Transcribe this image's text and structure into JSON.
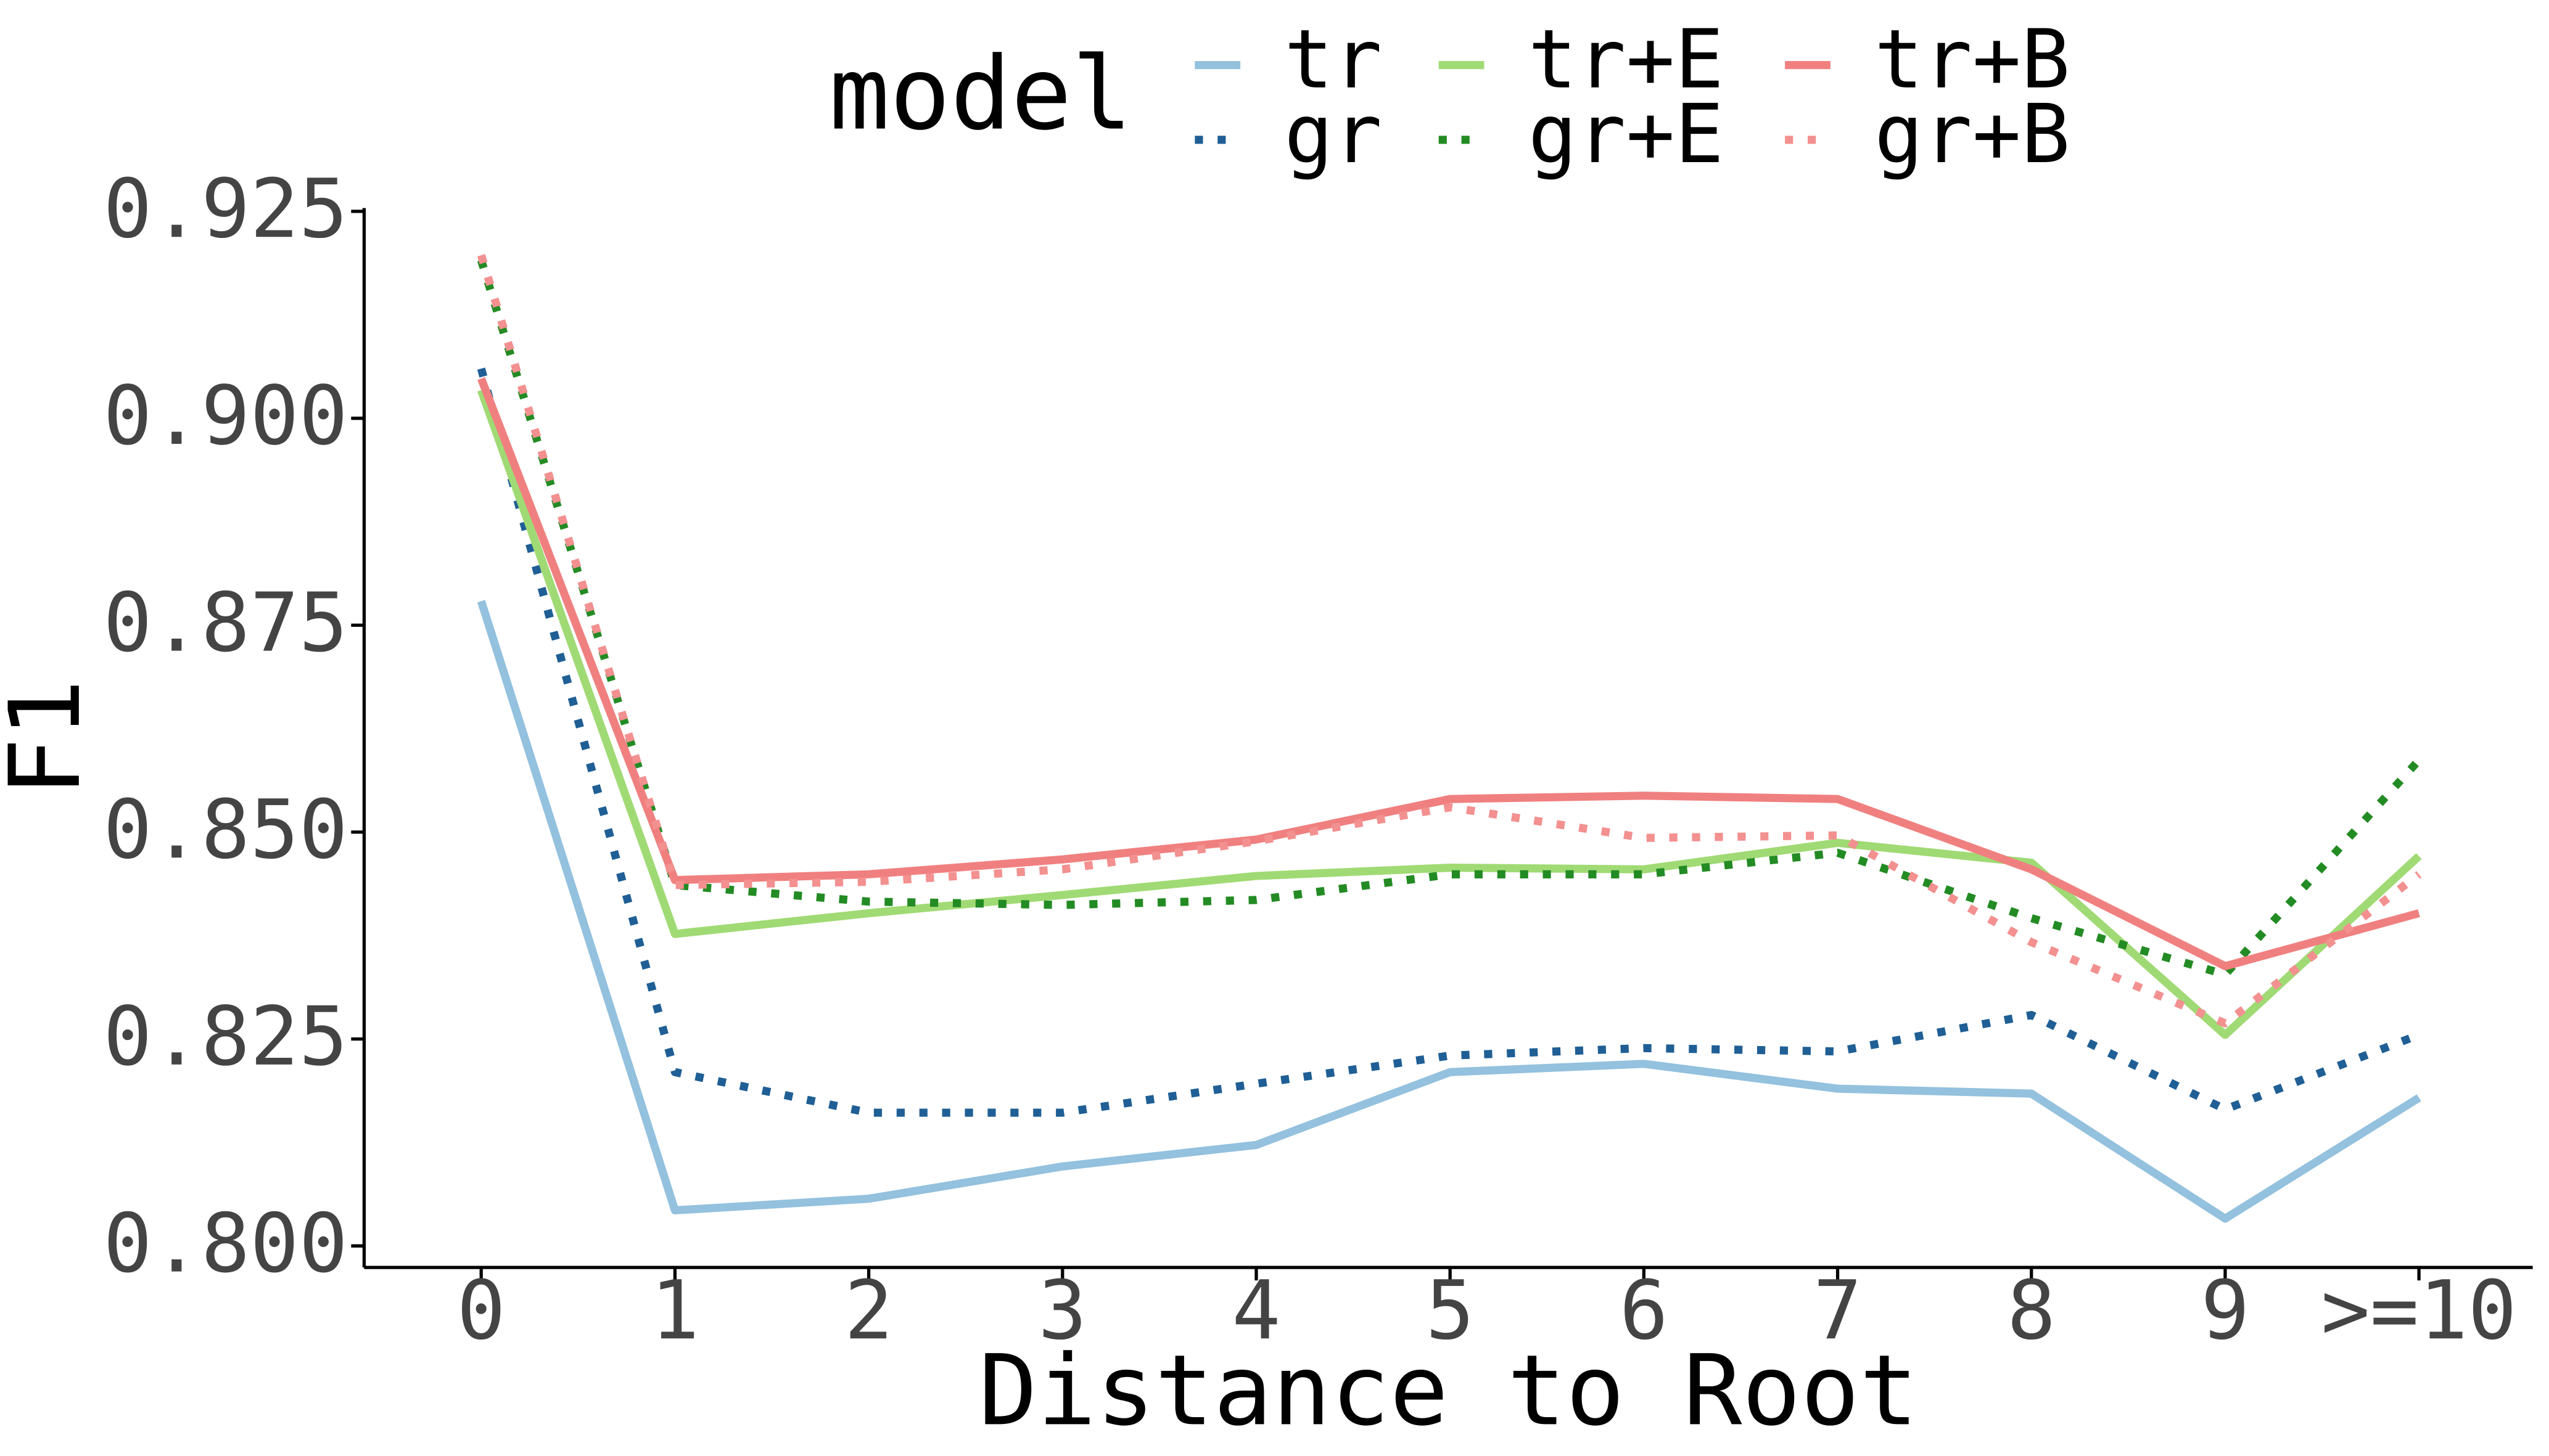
{
  "chart_data": {
    "type": "line",
    "x_label": "Distance to Root",
    "y_label": "F1",
    "legend_title": "model",
    "categories": [
      "0",
      "1",
      "2",
      "3",
      "4",
      "5",
      "6",
      "7",
      "8",
      "9",
      ">=10"
    ],
    "ylim": [
      0.7974,
      0.9254
    ],
    "yticks": [
      {
        "value": 0.8,
        "label": "0.800"
      },
      0.825,
      {
        "value": 0.85,
        "label": "0.850"
      },
      0.875,
      {
        "value": 0.9,
        "label": "0.900"
      },
      0.925
    ],
    "grid": false,
    "legend_position": "top",
    "series": [
      {
        "name": "tr",
        "color": "#93c1de",
        "linestyle": "solid",
        "values": [
          0.8779,
          0.8043,
          0.8057,
          0.8096,
          0.8122,
          0.821,
          0.822,
          0.819,
          0.8184,
          0.8033,
          0.8179
        ]
      },
      {
        "name": "gr",
        "color": "#1f5f95",
        "linestyle": "dotted",
        "values": [
          0.906,
          0.821,
          0.8161,
          0.8161,
          0.8196,
          0.823,
          0.8239,
          0.8235,
          0.8279,
          0.8165,
          0.8255
        ]
      },
      {
        "name": "tr+E",
        "color": "#a0da74",
        "linestyle": "solid",
        "values": [
          0.9034,
          0.8377,
          0.8402,
          0.8424,
          0.8447,
          0.8457,
          0.8455,
          0.8487,
          0.8463,
          0.8255,
          0.8471
        ]
      },
      {
        "name": "gr+E",
        "color": "#238b23",
        "linestyle": "dotted",
        "values": [
          0.9191,
          0.8436,
          0.8416,
          0.8412,
          0.8418,
          0.8449,
          0.8449,
          0.8475,
          0.8396,
          0.8328,
          0.8587
        ]
      },
      {
        "name": "tr+B",
        "color": "#f08080",
        "linestyle": "solid",
        "values": [
          0.9048,
          0.8442,
          0.8449,
          0.8467,
          0.8491,
          0.854,
          0.8544,
          0.854,
          0.8455,
          0.8338,
          0.8402
        ]
      },
      {
        "name": "gr+B",
        "color": "#f39090",
        "linestyle": "dotted",
        "values": [
          0.9197,
          0.8436,
          0.844,
          0.8455,
          0.8489,
          0.853,
          0.8493,
          0.8496,
          0.8367,
          0.8269,
          0.8449
        ]
      }
    ]
  }
}
